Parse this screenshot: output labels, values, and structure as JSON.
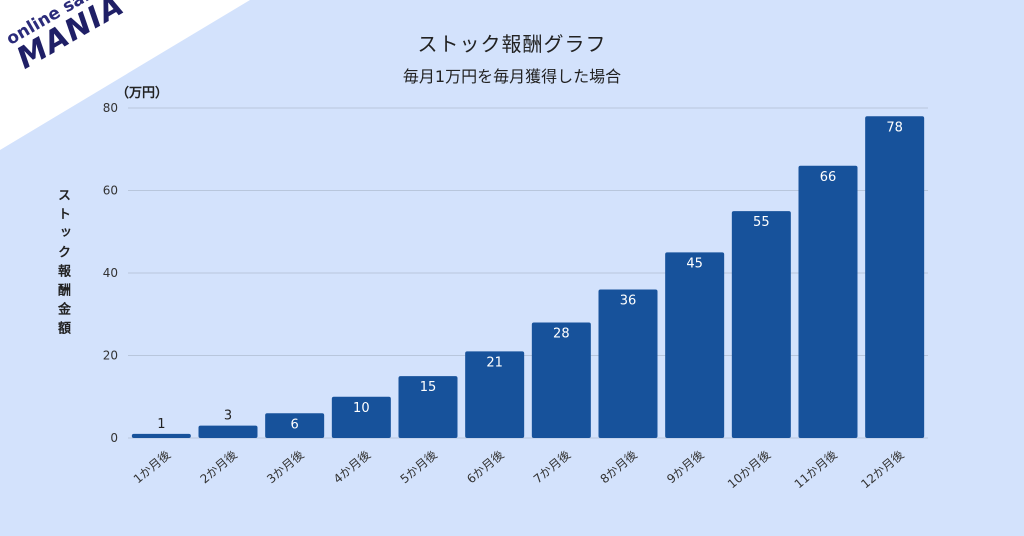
{
  "logo": {
    "small": "online salon",
    "big": "MANIA"
  },
  "chart_data": {
    "type": "bar",
    "title": "ストック報酬グラフ",
    "subtitle": "毎月1万円を毎月獲得した場合",
    "unit_label": "（万円）",
    "ylabel": "ストック報酬金額",
    "xlabel": "",
    "categories": [
      "1か月後",
      "2か月後",
      "3か月後",
      "4か月後",
      "5か月後",
      "6か月後",
      "7か月後",
      "8か月後",
      "9か月後",
      "10か月後",
      "11か月後",
      "12か月後"
    ],
    "values": [
      1,
      3,
      6,
      10,
      15,
      21,
      28,
      36,
      45,
      55,
      66,
      78
    ],
    "ylim": [
      0,
      80
    ],
    "yticks": [
      0,
      20,
      40,
      60,
      80
    ],
    "grid": true,
    "legend": "none",
    "colors": {
      "bar": "#17529b",
      "background": "#d3e2fc",
      "grid": "#b8c6dc"
    }
  }
}
